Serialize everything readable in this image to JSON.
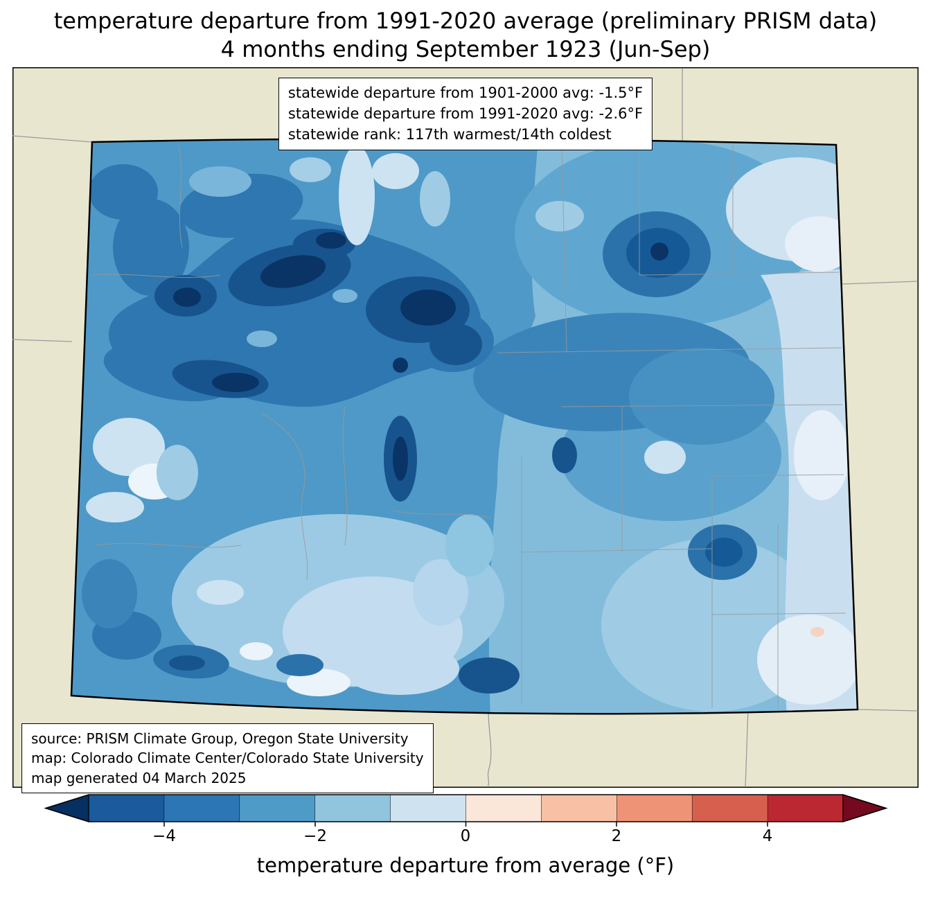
{
  "title": {
    "line1": "temperature departure from 1991-2020 average (preliminary PRISM data)",
    "line2": "4 months ending September 1923 (Jun-Sep)"
  },
  "stats_box": {
    "lines": [
      "statewide departure from 1901-2000 avg: -1.5°F",
      "statewide departure from 1991-2020 avg: -2.6°F",
      "statewide rank: 117th warmest/14th coldest"
    ]
  },
  "source_box": {
    "lines": [
      "source: PRISM Climate Group, Oregon State University",
      "map: Colorado Climate Center/Colorado State University",
      "map generated 04 March 2025"
    ]
  },
  "map": {
    "region": "Colorado",
    "background_color": "#e9e6d0",
    "state_border_color": "#000000",
    "county_border_color": "#999999",
    "value_palette": {
      "darkest_blue": "#0a3466",
      "dark_blue": "#17548e",
      "medium_dark_blue": "#2e77b0",
      "medium_blue": "#4e99c7",
      "light_medium_blue": "#83bcdb",
      "light_blue": "#c9dff0",
      "pale_blue": "#e7f0f8",
      "pale_pink": "#f6d2c0"
    }
  },
  "colorbar": {
    "label": "temperature departure from average (°F)",
    "range": [
      -5,
      5
    ],
    "ticks": [
      {
        "value": -4,
        "label": "−4"
      },
      {
        "value": -2,
        "label": "−2"
      },
      {
        "value": 0,
        "label": "0"
      },
      {
        "value": 2,
        "label": "2"
      },
      {
        "value": 4,
        "label": "4"
      }
    ],
    "segment_colors": [
      "#1b5a9d",
      "#2d76b5",
      "#4f9bc7",
      "#91c4dd",
      "#cfe2f0",
      "#fbe7da",
      "#f8c0a4",
      "#ef9377",
      "#d75f4e",
      "#bb2832"
    ],
    "arrow_left_color": "#053061",
    "arrow_right_color": "#75091f"
  }
}
